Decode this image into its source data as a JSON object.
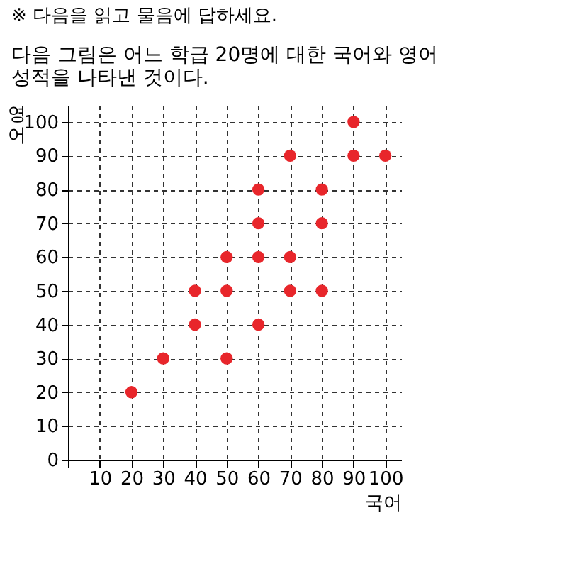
{
  "chart_data": {
    "type": "scatter",
    "title": "※ 다음을 읽고 물음에 답하세요.",
    "subtitle": "다음 그림은 어느 학급 20명에 대한 국어와 영어 성적을 나타낸 것이다.",
    "xlabel": "국어",
    "ylabel": "영어",
    "series": [
      {
        "color": "#e8262b",
        "x": [
          20,
          30,
          40,
          40,
          50,
          50,
          50,
          60,
          60,
          60,
          60,
          70,
          70,
          70,
          80,
          80,
          80,
          90,
          90,
          100
        ],
        "values": [
          20,
          30,
          50,
          40,
          60,
          50,
          30,
          80,
          70,
          60,
          40,
          90,
          60,
          50,
          80,
          70,
          50,
          100,
          90,
          90
        ]
      }
    ],
    "xlim": [
      0,
      105
    ],
    "ylim": [
      0,
      105
    ],
    "xticks": [
      {
        "value": 0,
        "label": null
      },
      10,
      20,
      30,
      40,
      50,
      60,
      70,
      80,
      90,
      100
    ],
    "yticks": [
      0,
      10,
      20,
      30,
      40,
      50,
      60,
      70,
      80,
      90,
      100
    ],
    "grid": true,
    "marker": "circle",
    "legend": false
  }
}
